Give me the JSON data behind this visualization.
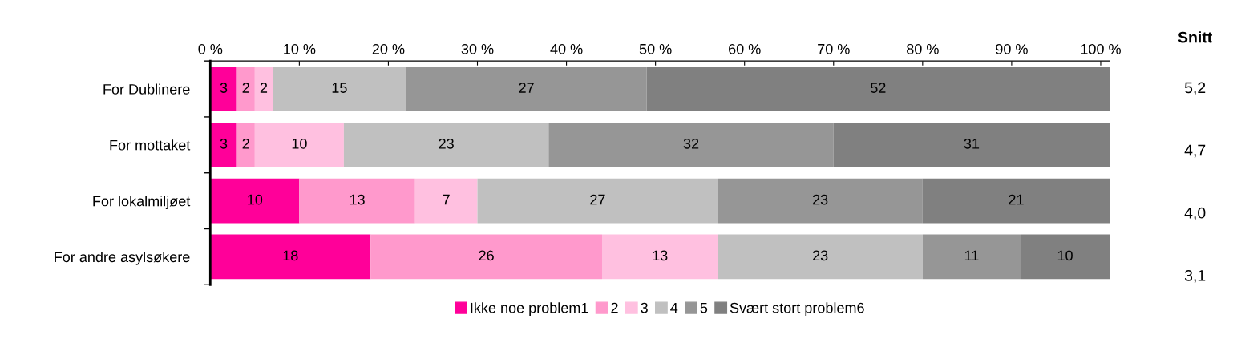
{
  "chart_data": {
    "type": "bar",
    "orientation": "horizontal",
    "stacked": true,
    "data_labels": true,
    "legend": "bottom",
    "grid": false,
    "categories": [
      "For Dublinere",
      "For mottaket",
      "For lokalmiljøet",
      "For andre asylsøkere"
    ],
    "series": [
      {
        "name": "Ikke noe problem1",
        "color": "#ff0099",
        "values": [
          3,
          3,
          10,
          18
        ]
      },
      {
        "name": "2",
        "color": "#ff99cc",
        "values": [
          2,
          2,
          13,
          26
        ]
      },
      {
        "name": "3",
        "color": "#ffc0e0",
        "values": [
          2,
          10,
          7,
          13
        ]
      },
      {
        "name": "4",
        "color": "#c0c0c0",
        "values": [
          15,
          23,
          27,
          23
        ]
      },
      {
        "name": "5",
        "color": "#969696",
        "values": [
          27,
          32,
          23,
          11
        ]
      },
      {
        "name": "Svært stort problem6",
        "color": "#808080",
        "values": [
          52,
          31,
          21,
          10
        ]
      }
    ],
    "xlim": [
      0,
      101
    ],
    "xticks": [
      {
        "value": 0,
        "label": "0 %"
      },
      {
        "value": 10,
        "label": "10 %"
      },
      {
        "value": 20,
        "label": "20 %"
      },
      {
        "value": 30,
        "label": "30 %"
      },
      {
        "value": 40,
        "label": "40 %"
      },
      {
        "value": 50,
        "label": "50 %"
      },
      {
        "value": 60,
        "label": "60 %"
      },
      {
        "value": 70,
        "label": "70 %"
      },
      {
        "value": 80,
        "label": "80 %"
      },
      {
        "value": 90,
        "label": "90 %"
      },
      {
        "value": 100,
        "label": "100 %"
      }
    ],
    "annotations": [
      "Snitt",
      "5,2",
      "4,7",
      "4,0",
      "3,1"
    ]
  }
}
